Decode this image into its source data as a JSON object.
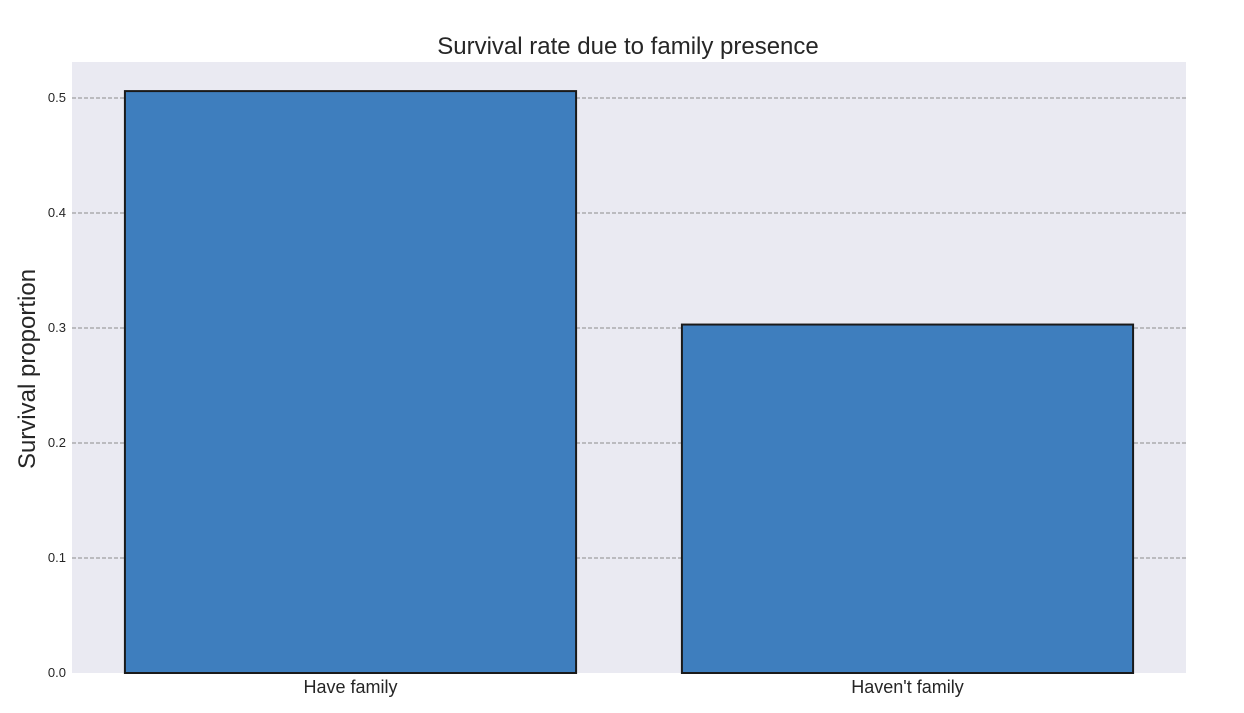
{
  "chart_data": {
    "type": "bar",
    "title": "Survival rate due to family presence",
    "xlabel": "",
    "ylabel": "Survival proportion",
    "categories": [
      "Have family",
      "Haven't family"
    ],
    "values": [
      0.506,
      0.303
    ],
    "ylim": [
      0,
      0.53
    ],
    "yticks": [
      0.0,
      0.1,
      0.2,
      0.3,
      0.4,
      0.5
    ],
    "ytick_labels": [
      "0.0",
      "0.1",
      "0.2",
      "0.3",
      "0.4",
      "0.5"
    ],
    "grid": "horizontal dashed",
    "legend": "none",
    "colors": {
      "bar_fill": "#3e7ebe",
      "bar_edge": "#1a1a1a",
      "plot_background": "#eaeaf2",
      "grid_line": "#8c8c8c"
    }
  }
}
